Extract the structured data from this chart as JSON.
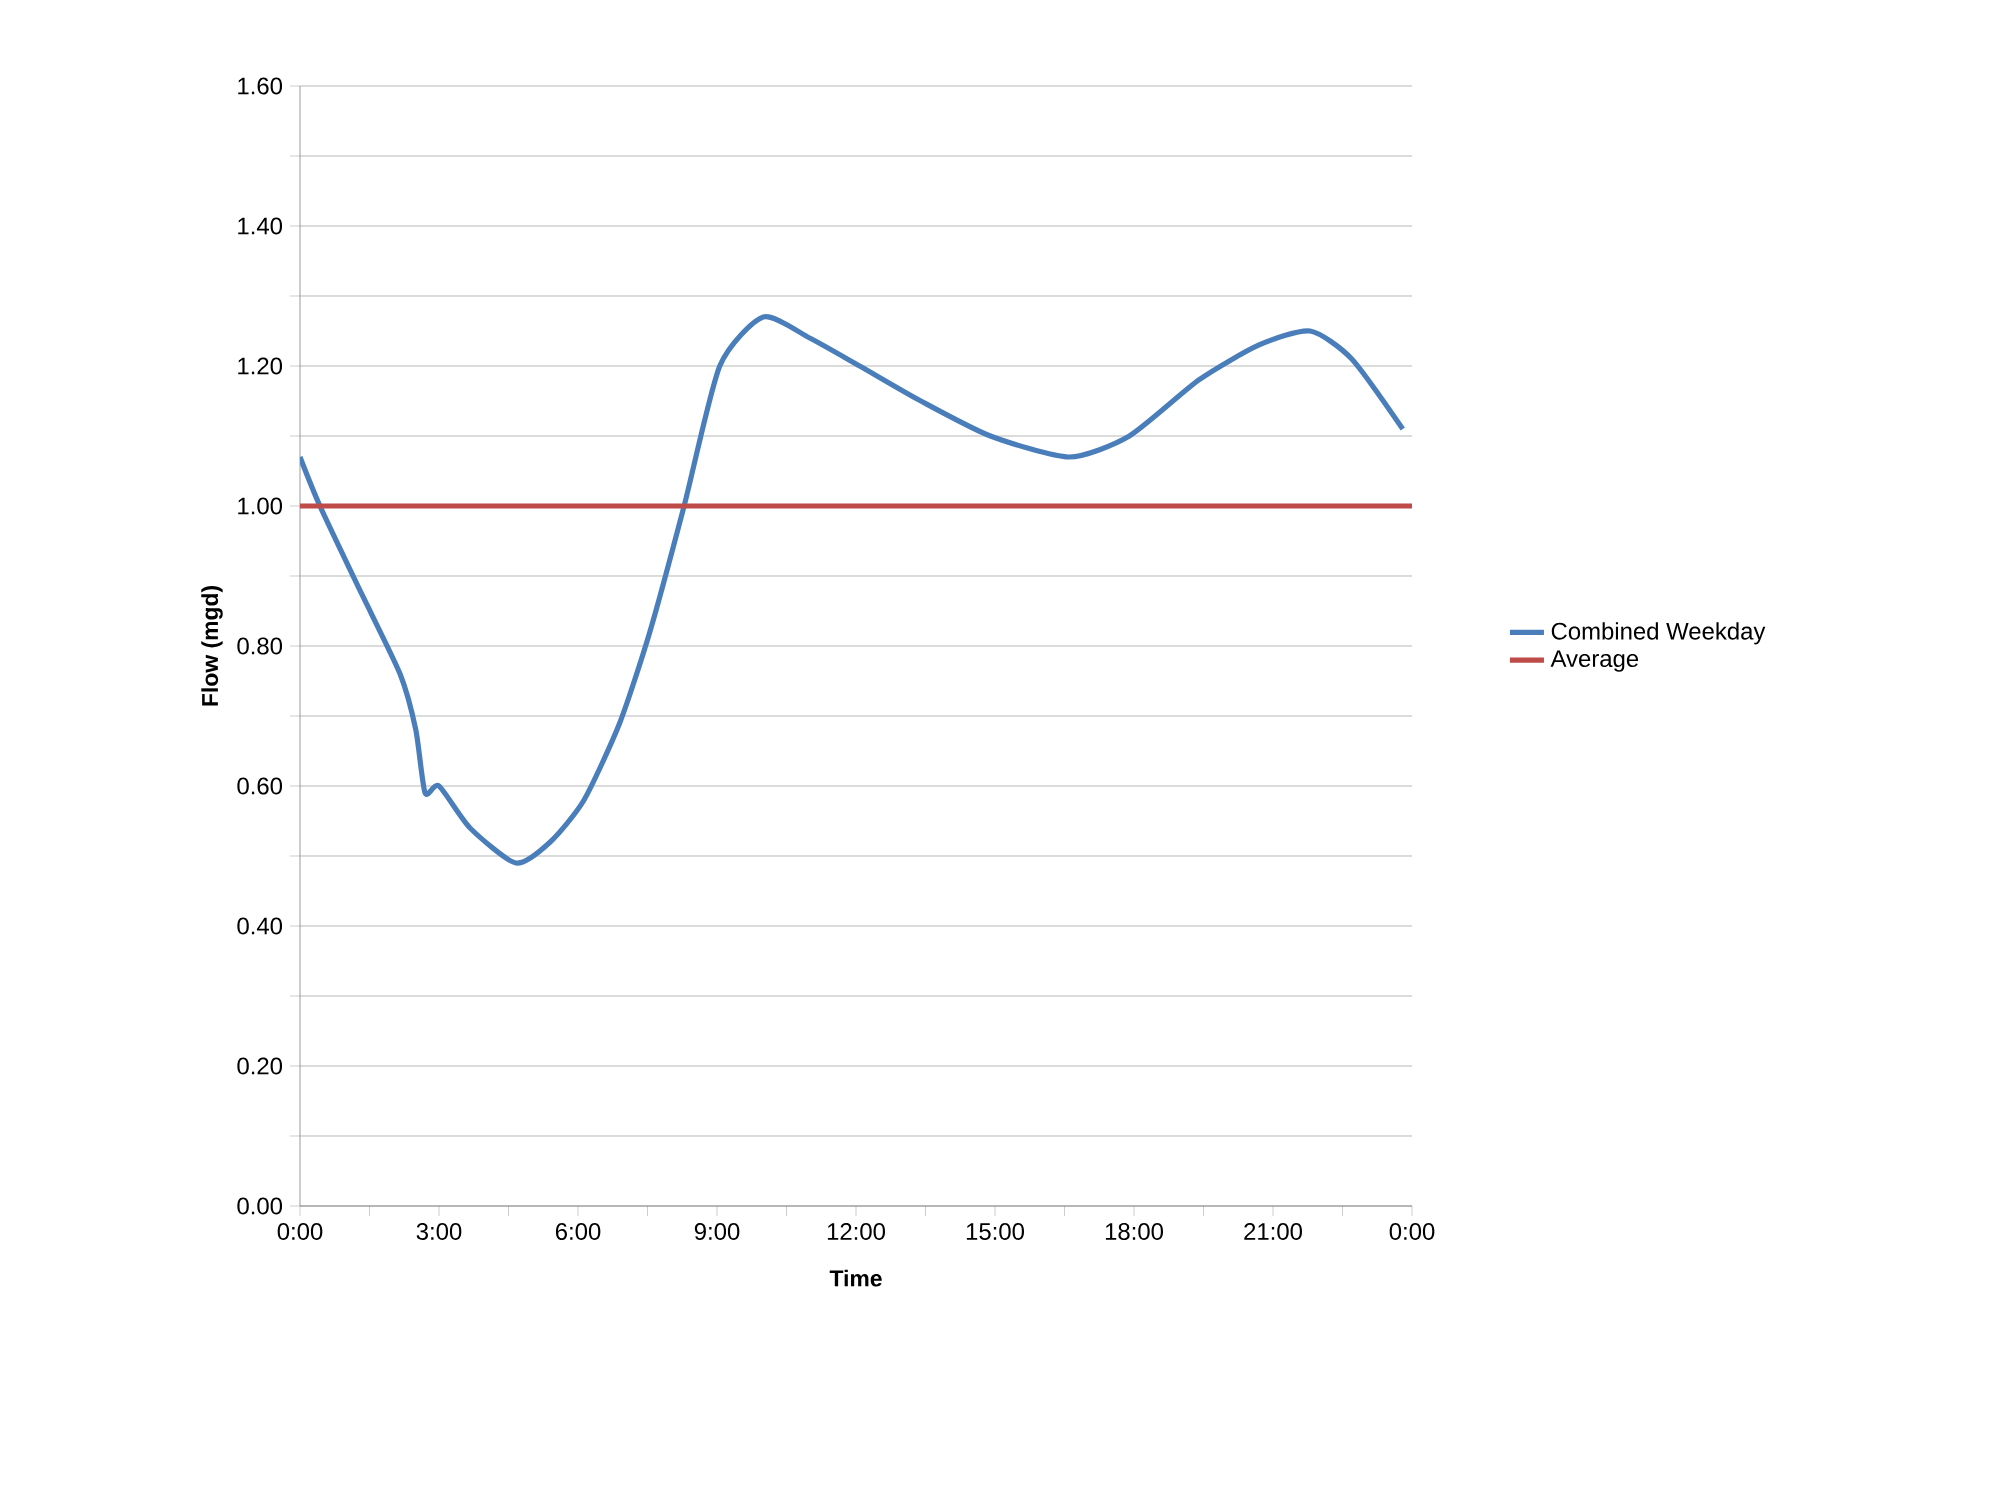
{
  "chart_data": {
    "type": "line",
    "xlabel": "Time",
    "ylabel": "Flow (mgd)",
    "xlim": [
      0,
      24
    ],
    "ylim": [
      0,
      1.6
    ],
    "xticks": [
      {
        "value": 0,
        "label": "0:00"
      },
      {
        "value": 1.5,
        "label": null
      },
      {
        "value": 3,
        "label": "3:00"
      },
      {
        "value": 4.5,
        "label": null
      },
      {
        "value": 6,
        "label": "6:00"
      },
      {
        "value": 7.5,
        "label": null
      },
      {
        "value": 9,
        "label": "9:00"
      },
      {
        "value": 10.5,
        "label": null
      },
      {
        "value": 12,
        "label": "12:00"
      },
      {
        "value": 13.5,
        "label": null
      },
      {
        "value": 15,
        "label": "15:00"
      },
      {
        "value": 16.5,
        "label": null
      },
      {
        "value": 18,
        "label": "18:00"
      },
      {
        "value": 19.5,
        "label": null
      },
      {
        "value": 21,
        "label": "21:00"
      },
      {
        "value": 22.5,
        "label": null
      },
      {
        "value": 24,
        "label": "0:00"
      }
    ],
    "yticks": [
      {
        "value": 0,
        "label": "0.00"
      },
      {
        "value": 0.1,
        "label": null
      },
      {
        "value": 0.2,
        "label": "0.20"
      },
      {
        "value": 0.3,
        "label": null
      },
      {
        "value": 0.4,
        "label": "0.40"
      },
      {
        "value": 0.5,
        "label": null
      },
      {
        "value": 0.6,
        "label": "0.60"
      },
      {
        "value": 0.7,
        "label": null
      },
      {
        "value": 0.8,
        "label": "0.80"
      },
      {
        "value": 0.9,
        "label": null
      },
      {
        "value": 1.0,
        "label": "1.00"
      },
      {
        "value": 1.1,
        "label": null
      },
      {
        "value": 1.2,
        "label": "1.20"
      },
      {
        "value": 1.3,
        "label": null
      },
      {
        "value": 1.4,
        "label": "1.40"
      },
      {
        "value": 1.5,
        "label": null
      },
      {
        "value": 1.6,
        "label": "1.60"
      }
    ],
    "grid": "y",
    "legend": "right",
    "marker": "none",
    "line_style": "solid",
    "series": [
      {
        "name": "Combined Weekday",
        "color": "#4a7ebb",
        "x": [
          0,
          0.43,
          1.29,
          2.16,
          2.5,
          2.7,
          3.0,
          3.67,
          4.66,
          5.4,
          6.13,
          6.9,
          7.55,
          8.29,
          9.06,
          10.0,
          11.0,
          12.08,
          13.4,
          14.9,
          16.6,
          17.9,
          19.4,
          20.7,
          21.8,
          22.7,
          23.8
        ],
        "values": [
          1.07,
          1.0,
          0.88,
          0.76,
          0.68,
          0.59,
          0.6,
          0.54,
          0.49,
          0.52,
          0.58,
          0.69,
          0.82,
          1.0,
          1.2,
          1.27,
          1.24,
          1.2,
          1.15,
          1.1,
          1.07,
          1.1,
          1.18,
          1.23,
          1.25,
          1.21,
          1.11
        ]
      },
      {
        "name": "Average",
        "color": "#be4b48",
        "x": [
          0,
          24
        ],
        "values": [
          1.0,
          1.0
        ]
      }
    ]
  }
}
